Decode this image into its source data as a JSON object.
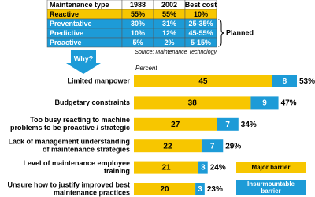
{
  "table": {
    "header": [
      "Maintenance type",
      "1988",
      "2002",
      "Best cost"
    ],
    "rows": [
      {
        "cells": [
          "Reactive",
          "55%",
          "55%",
          "10%"
        ],
        "color": "#f7c600",
        "text_color": "#000000"
      },
      {
        "cells": [
          "Preventative",
          "30%",
          "31%",
          "25-35%"
        ],
        "color": "#1d9bd7",
        "text_color": "#ffffff"
      },
      {
        "cells": [
          "Predictive",
          "10%",
          "12%",
          "45-55%"
        ],
        "color": "#1d9bd7",
        "text_color": "#ffffff"
      },
      {
        "cells": [
          "Proactive",
          "5%",
          "2%",
          "5-15%"
        ],
        "color": "#1d9bd7",
        "text_color": "#ffffff"
      }
    ],
    "bracket_label": "Planned",
    "source": "Source: Maintenance Technology"
  },
  "arrow_label": "Why?",
  "chart_data": {
    "type": "stacked-bar-horizontal",
    "axis_label": "Percent",
    "categories": [
      [
        "Limited manpower"
      ],
      [
        "Budgetary constraints"
      ],
      [
        "Too busy reacting to machine",
        "problems to be proactive / strategic"
      ],
      [
        "Lack of management understanding",
        "of maintenance strategies"
      ],
      [
        "Level of maintenance employee",
        "training"
      ],
      [
        "Unsure how to justify improved best",
        "maintenance practices"
      ]
    ],
    "series": [
      {
        "name": "Major barrier",
        "color": "#f7c600",
        "values": [
          45,
          38,
          27,
          22,
          21,
          20
        ]
      },
      {
        "name": "Insurmountable barrier",
        "color": "#1d9bd7",
        "values": [
          8,
          9,
          7,
          7,
          3,
          3
        ]
      }
    ],
    "total_labels": [
      "53%",
      "47%",
      "34%",
      "29%",
      "24%",
      "23%"
    ]
  }
}
